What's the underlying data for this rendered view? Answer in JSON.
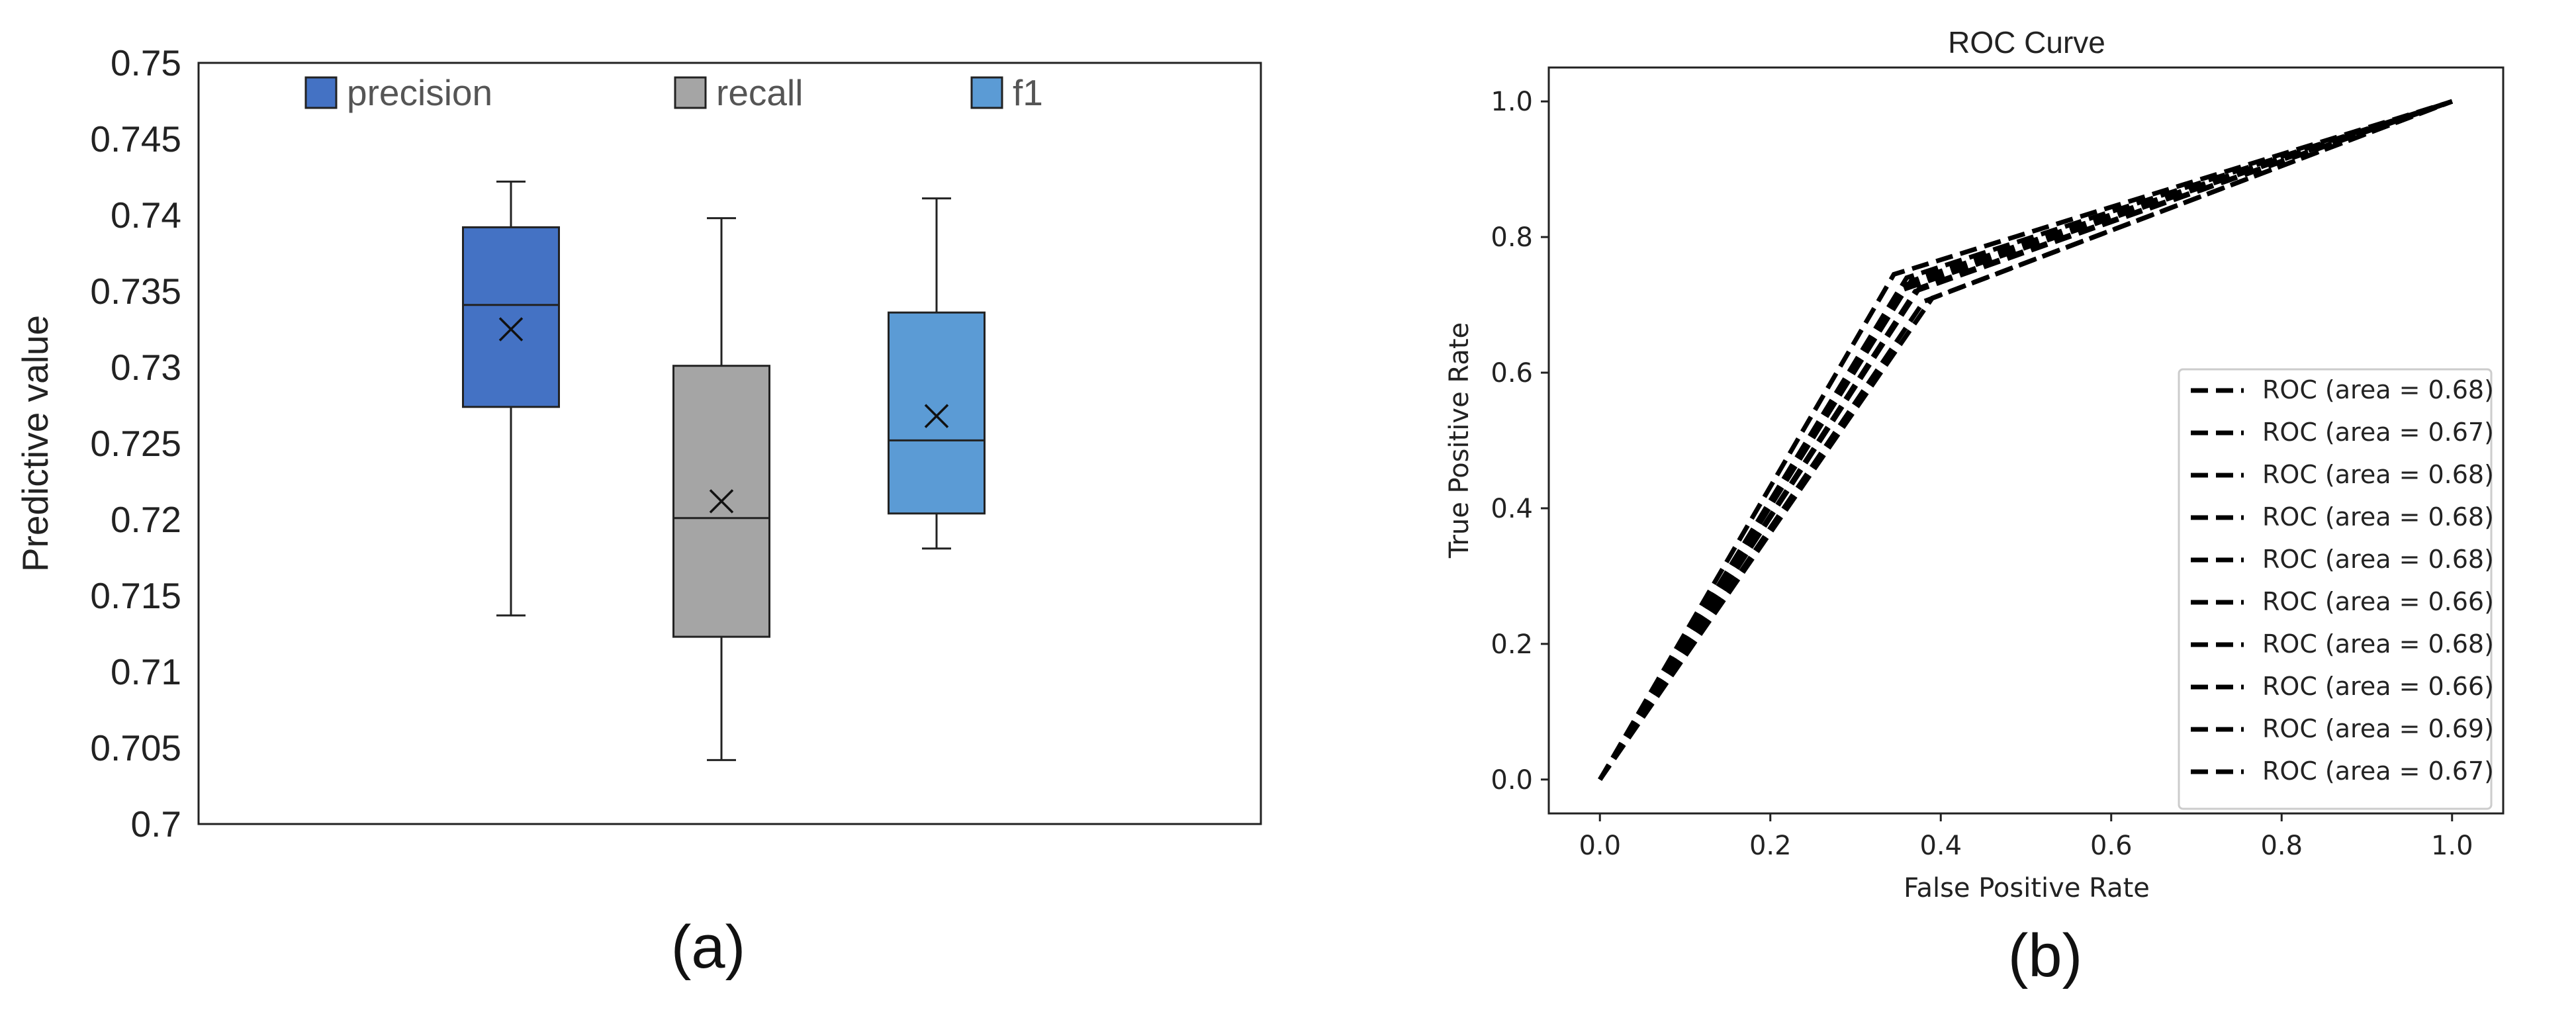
{
  "chart_data": [
    {
      "type": "box",
      "caption": "(a)",
      "title": "",
      "xlabel": "",
      "ylabel": "Predictive value",
      "ylim": [
        0.7,
        0.75
      ],
      "yticks": [
        "0.7",
        "0.705",
        "0.71",
        "0.715",
        "0.72",
        "0.725",
        "0.73",
        "0.735",
        "0.74",
        "0.745",
        "0.75"
      ],
      "legend_position": "top",
      "series": [
        {
          "name": "precision",
          "color": "#4472C4",
          "min": 0.7137,
          "q1": 0.7274,
          "median": 0.7341,
          "q3": 0.7392,
          "max": 0.7422,
          "mean": 0.7325
        },
        {
          "name": "recall",
          "color": "#A5A5A5",
          "min": 0.7042,
          "q1": 0.7123,
          "median": 0.7201,
          "q3": 0.7301,
          "max": 0.7398,
          "mean": 0.7212
        },
        {
          "name": "f1",
          "color": "#5B9BD5",
          "min": 0.7181,
          "q1": 0.7204,
          "median": 0.7252,
          "q3": 0.7336,
          "max": 0.7411,
          "mean": 0.7268
        }
      ]
    },
    {
      "type": "line",
      "caption": "(b)",
      "title": "ROC Curve",
      "xlabel": "False Positive Rate",
      "ylabel": "True Positive Rate",
      "xlim": [
        -0.06,
        1.06
      ],
      "ylim": [
        -0.05,
        1.05
      ],
      "xticks": [
        "0.0",
        "0.2",
        "0.4",
        "0.6",
        "0.8",
        "1.0"
      ],
      "yticks": [
        "0.0",
        "0.2",
        "0.4",
        "0.6",
        "0.8",
        "1.0"
      ],
      "legend_position": "lower right",
      "line_style": "dashed",
      "line_color": "#000000",
      "series": [
        {
          "name": "ROC (area = 0.68)",
          "x": [
            0,
            0.36,
            1
          ],
          "y": [
            0,
            0.73,
            1
          ]
        },
        {
          "name": "ROC (area = 0.67)",
          "x": [
            0,
            0.37,
            1
          ],
          "y": [
            0,
            0.72,
            1
          ]
        },
        {
          "name": "ROC (area = 0.68)",
          "x": [
            0,
            0.355,
            1
          ],
          "y": [
            0,
            0.725,
            1
          ]
        },
        {
          "name": "ROC (area = 0.68)",
          "x": [
            0,
            0.365,
            1
          ],
          "y": [
            0,
            0.735,
            1
          ]
        },
        {
          "name": "ROC (area = 0.68)",
          "x": [
            0,
            0.35,
            1
          ],
          "y": [
            0,
            0.72,
            1
          ]
        },
        {
          "name": "ROC (area = 0.66)",
          "x": [
            0,
            0.39,
            1
          ],
          "y": [
            0,
            0.71,
            1
          ]
        },
        {
          "name": "ROC (area = 0.68)",
          "x": [
            0,
            0.36,
            1
          ],
          "y": [
            0,
            0.74,
            1
          ]
        },
        {
          "name": "ROC (area = 0.66)",
          "x": [
            0,
            0.38,
            1
          ],
          "y": [
            0,
            0.705,
            1
          ]
        },
        {
          "name": "ROC (area = 0.69)",
          "x": [
            0,
            0.345,
            1
          ],
          "y": [
            0,
            0.745,
            1
          ]
        },
        {
          "name": "ROC (area = 0.67)",
          "x": [
            0,
            0.375,
            1
          ],
          "y": [
            0,
            0.725,
            1
          ]
        }
      ]
    }
  ]
}
